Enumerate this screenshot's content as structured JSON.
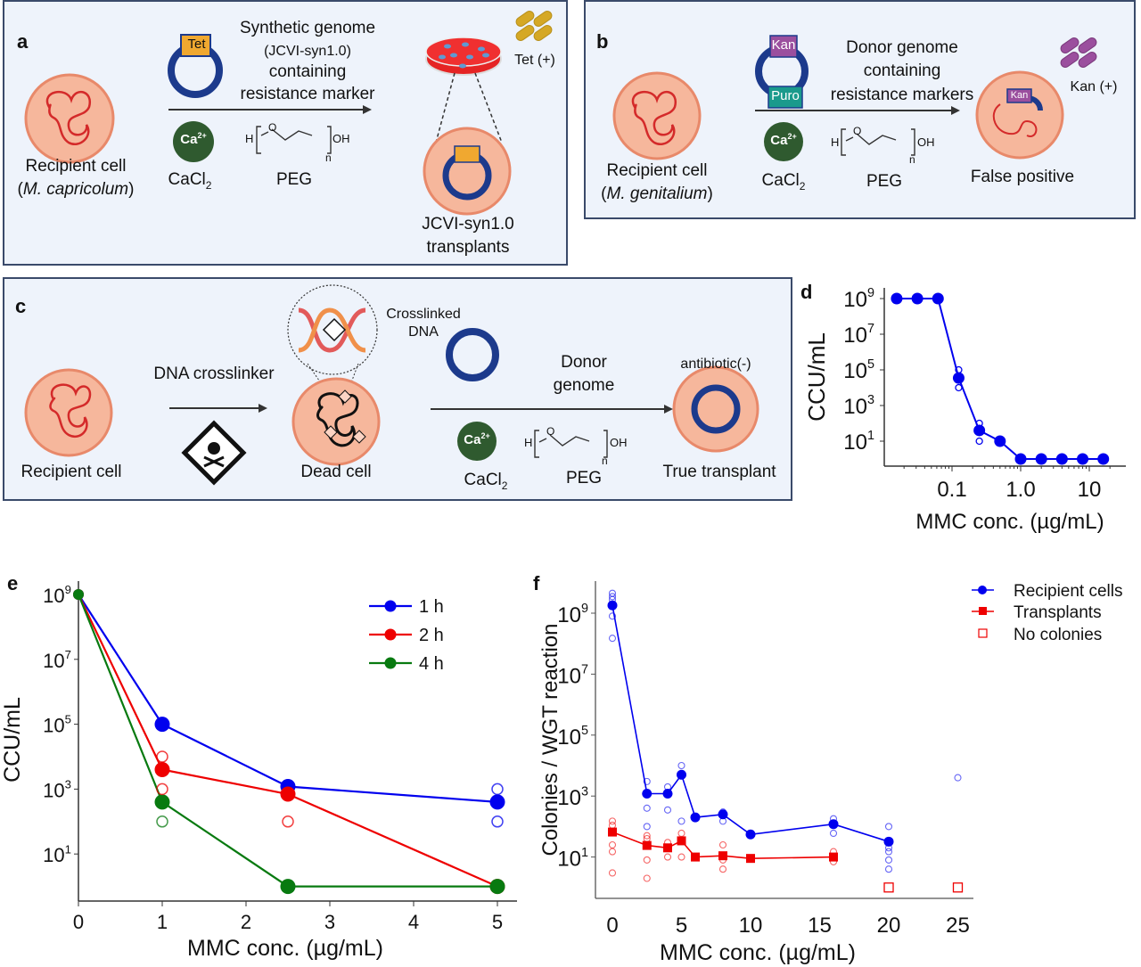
{
  "panels": {
    "a": {
      "label": "a",
      "recipient_line1": "Recipient cell",
      "recipient_line2": "M. capricolum",
      "marker": "Tet",
      "genome_line1": "Synthetic genome",
      "genome_line2": "(JCVI-syn1.0)",
      "genome_line3": "containing",
      "genome_line4": "resistance marker",
      "ca_label": "Ca",
      "ca_sup": "2+",
      "cacl_label": "CaCl",
      "cacl_sub": "2",
      "peg_label": "PEG",
      "antibiotic": "Tet (+)",
      "result_line1": "JCVI-syn1.0",
      "result_line2": "transplants"
    },
    "b": {
      "label": "b",
      "recipient_line1": "Recipient cell",
      "recipient_line2": "M. genitalium",
      "marker1": "Kan",
      "marker2": "Puro",
      "genome_line1": "Donor genome",
      "genome_line2": "containing",
      "genome_line3": "resistance markers",
      "ca_label": "Ca",
      "ca_sup": "2+",
      "cacl_label": "CaCl",
      "cacl_sub": "2",
      "peg_label": "PEG",
      "antibiotic": "Kan (+)",
      "result": "False positive"
    },
    "c": {
      "label": "c",
      "recipient": "Recipient cell",
      "crosslinker": "DNA crosslinker",
      "crosslinked_line1": "Crosslinked",
      "crosslinked_line2": "DNA",
      "dead_cell": "Dead cell",
      "donor_line1": "Donor",
      "donor_line2": "genome",
      "ca_label": "Ca",
      "ca_sup": "2+",
      "cacl_label": "CaCl",
      "cacl_sub": "2",
      "peg_label": "PEG",
      "antibiotic": "antibiotic(-)",
      "result": "True transplant"
    },
    "peg_formula": {
      "h": "H",
      "o": "O",
      "oh": "OH",
      "n": "n"
    }
  },
  "colors": {
    "panel_bg": "#eef3fb",
    "cell_fill": "#f6b79c",
    "cell_border": "#e8896a",
    "dna_red": "#d42a2a",
    "genome_blue": "#1c3a8c",
    "tet_orange": "#f0a830",
    "kan_purple": "#9b4f9e",
    "puro_teal": "#1a9a8c",
    "ca_green": "#2f5a2f",
    "series_blue": "#0000ee",
    "series_red": "#ee0000",
    "series_green": "#087a10"
  },
  "chart_data": [
    {
      "panel": "d",
      "type": "line",
      "label": "d",
      "xlabel": "MMC conc. (µg/mL)",
      "ylabel": "CCU/mL",
      "xscale": "log",
      "yscale": "log",
      "xticks": [
        {
          "v": 0.1,
          "label": "0.1"
        },
        {
          "v": 1,
          "label": "1.0"
        },
        {
          "v": 10,
          "label": "10"
        }
      ],
      "yticks": [
        {
          "v": 1,
          "label": "10",
          "sup": "1"
        },
        {
          "v": 3,
          "label": "10",
          "sup": "3"
        },
        {
          "v": 5,
          "label": "10",
          "sup": "5"
        },
        {
          "v": 7,
          "label": "10",
          "sup": "7"
        },
        {
          "v": 9,
          "label": "10",
          "sup": "9"
        }
      ],
      "series": [
        {
          "name": "CCU/mL",
          "color": "#0000ee",
          "x": [
            0.015625,
            0.03125,
            0.0625,
            0.125,
            0.25,
            0.5,
            1,
            2,
            4,
            8,
            16
          ],
          "y": [
            1000000000.0,
            1000000000.0,
            1000000000.0,
            35000.0,
            40,
            10,
            1,
            1,
            1,
            1,
            1
          ]
        }
      ],
      "replicates": [
        {
          "x": 0.125,
          "y": 100000.0
        },
        {
          "x": 0.125,
          "y": 10000.0
        },
        {
          "x": 0.25,
          "y": 100
        },
        {
          "x": 0.25,
          "y": 10
        }
      ]
    },
    {
      "panel": "e",
      "type": "line",
      "label": "e",
      "xlabel": "MMC conc. (µg/mL)",
      "ylabel": "CCU/mL",
      "yscale": "log",
      "xlim": [
        0,
        5.2
      ],
      "xticks": [
        0,
        1,
        2,
        3,
        4,
        5
      ],
      "yticks": [
        {
          "v": 1,
          "label": "10",
          "sup": "1"
        },
        {
          "v": 3,
          "label": "10",
          "sup": "3"
        },
        {
          "v": 5,
          "label": "10",
          "sup": "5"
        },
        {
          "v": 7,
          "label": "10",
          "sup": "7"
        },
        {
          "v": 9,
          "label": "10",
          "sup": "9"
        }
      ],
      "legend_position": "top-right",
      "series": [
        {
          "name": "1 h",
          "color": "#0000ee",
          "x": [
            0,
            1,
            2.5,
            5
          ],
          "y": [
            1000000000.0,
            100000.0,
            1200.0,
            400.0
          ]
        },
        {
          "name": "2 h",
          "color": "#ee0000",
          "x": [
            0,
            1,
            2.5,
            5
          ],
          "y": [
            1000000000.0,
            4000.0,
            700.0,
            1
          ]
        },
        {
          "name": "4 h",
          "color": "#087a10",
          "x": [
            0,
            1,
            2.5,
            5
          ],
          "y": [
            1000000000.0,
            400.0,
            1,
            1
          ]
        }
      ],
      "replicates": [
        {
          "series": "2 h",
          "x": 1,
          "y": 10000.0
        },
        {
          "series": "2 h",
          "x": 1,
          "y": 1000.0
        },
        {
          "series": "4 h",
          "x": 1,
          "y": 100.0
        },
        {
          "series": "2 h",
          "x": 2.5,
          "y": 100.0
        },
        {
          "series": "1 h",
          "x": 5,
          "y": 1000.0
        },
        {
          "series": "1 h",
          "x": 5,
          "y": 100.0
        }
      ]
    },
    {
      "panel": "f",
      "type": "line",
      "label": "f",
      "xlabel": "MMC conc. (µg/mL)",
      "ylabel": "Colonies / WGT reaction",
      "yscale": "log",
      "xlim": [
        -2.5,
        27
      ],
      "xticks": [
        0,
        5,
        10,
        15,
        20,
        25
      ],
      "yticks": [
        {
          "v": 1,
          "label": "10",
          "sup": "1"
        },
        {
          "v": 3,
          "label": "10",
          "sup": "3"
        },
        {
          "v": 5,
          "label": "10",
          "sup": "5"
        },
        {
          "v": 7,
          "label": "10",
          "sup": "7"
        },
        {
          "v": 9,
          "label": "10",
          "sup": "9"
        }
      ],
      "legend_position": "top-right",
      "legend": [
        "Recipient cells",
        "Transplants",
        "No colonies"
      ],
      "series": [
        {
          "name": "Recipient cells",
          "color": "#0000ee",
          "marker": "circle",
          "x": [
            0,
            2.5,
            4,
            5,
            6,
            8,
            10,
            16,
            20
          ],
          "y": [
            1800000000.0,
            1200,
            1200,
            5000,
            200,
            250,
            55,
            120,
            32
          ]
        },
        {
          "name": "Transplants",
          "color": "#ee0000",
          "marker": "square",
          "x": [
            0,
            2.5,
            4,
            5,
            6,
            8,
            10,
            16
          ],
          "y": [
            66,
            24,
            20,
            34,
            10,
            11,
            9,
            10
          ]
        }
      ],
      "no_colonies": [
        {
          "x": 20,
          "y": 1
        },
        {
          "x": 25,
          "y": 1
        }
      ],
      "replicates_recipient": [
        {
          "x": 0,
          "y": 4500000000.0
        },
        {
          "x": 0,
          "y": 3500000000.0
        },
        {
          "x": 0,
          "y": 2800000000.0
        },
        {
          "x": 0,
          "y": 800000000.0
        },
        {
          "x": 0,
          "y": 150000000.0
        },
        {
          "x": 2.5,
          "y": 3000
        },
        {
          "x": 2.5,
          "y": 400
        },
        {
          "x": 2.5,
          "y": 100
        },
        {
          "x": 4,
          "y": 2000
        },
        {
          "x": 4,
          "y": 350
        },
        {
          "x": 5,
          "y": 10000
        },
        {
          "x": 5,
          "y": 150
        },
        {
          "x": 8,
          "y": 300
        },
        {
          "x": 8,
          "y": 150
        },
        {
          "x": 16,
          "y": 180
        },
        {
          "x": 16,
          "y": 60
        },
        {
          "x": 20,
          "y": 100
        },
        {
          "x": 20,
          "y": 20
        },
        {
          "x": 20,
          "y": 15
        },
        {
          "x": 20,
          "y": 8
        },
        {
          "x": 20,
          "y": 4
        },
        {
          "x": 25,
          "y": 4000
        }
      ],
      "replicates_transplants": [
        {
          "x": 0,
          "y": 150
        },
        {
          "x": 0,
          "y": 110
        },
        {
          "x": 0,
          "y": 25
        },
        {
          "x": 0,
          "y": 15
        },
        {
          "x": 0,
          "y": 3
        },
        {
          "x": 2.5,
          "y": 50
        },
        {
          "x": 2.5,
          "y": 40
        },
        {
          "x": 2.5,
          "y": 8
        },
        {
          "x": 2.5,
          "y": 2
        },
        {
          "x": 4,
          "y": 30
        },
        {
          "x": 4,
          "y": 10
        },
        {
          "x": 5,
          "y": 60
        },
        {
          "x": 5,
          "y": 10
        },
        {
          "x": 8,
          "y": 25
        },
        {
          "x": 8,
          "y": 8
        },
        {
          "x": 8,
          "y": 4
        },
        {
          "x": 16,
          "y": 15
        },
        {
          "x": 16,
          "y": 7
        }
      ]
    }
  ]
}
